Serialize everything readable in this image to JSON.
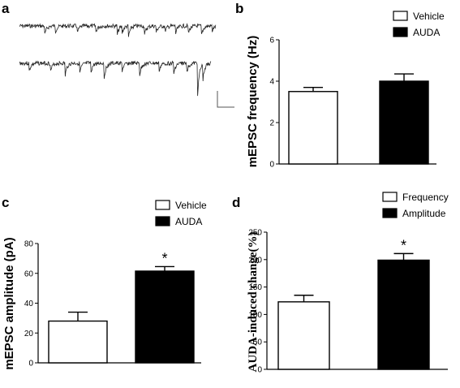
{
  "panel_a": {
    "label": "a",
    "traces": [
      "upper",
      "lower"
    ]
  },
  "chart_data": [
    {
      "panel": "b",
      "type": "bar",
      "ylabel": "mEPSC frequency (Hz)",
      "ylim": [
        0,
        6
      ],
      "yticks": [
        "0",
        "2",
        "4",
        "6"
      ],
      "legend_position": "top-right",
      "series": [
        {
          "name": "Vehicle",
          "value": 3.5,
          "error": 0.2,
          "fill": "#ffffff"
        },
        {
          "name": "AUDA",
          "value": 4.0,
          "error": 0.35,
          "fill": "#000000"
        }
      ],
      "significance": ""
    },
    {
      "panel": "c",
      "type": "bar",
      "ylabel": "mEPSC amplitude (pA)",
      "ylim": [
        0,
        80
      ],
      "yticks": [
        "0",
        "20",
        "40",
        "60",
        "80"
      ],
      "legend_position": "top-right",
      "series": [
        {
          "name": "Vehicle",
          "value": 28,
          "error": 6,
          "fill": "#ffffff"
        },
        {
          "name": "AUDA",
          "value": 61.5,
          "error": 3,
          "fill": "#000000"
        }
      ],
      "significance": "*"
    },
    {
      "panel": "d",
      "type": "bar",
      "ylabel": "AUDA-induced change(%)",
      "ylim": [
        0,
        250
      ],
      "yticks": [
        "0",
        "50",
        "100",
        "150",
        "200",
        "250"
      ],
      "legend_position": "top-right",
      "series": [
        {
          "name": "Frequency",
          "value": 123,
          "error": 12,
          "fill": "#ffffff"
        },
        {
          "name": "Amplitude",
          "value": 199,
          "error": 12,
          "fill": "#000000"
        }
      ],
      "significance": "*"
    }
  ]
}
